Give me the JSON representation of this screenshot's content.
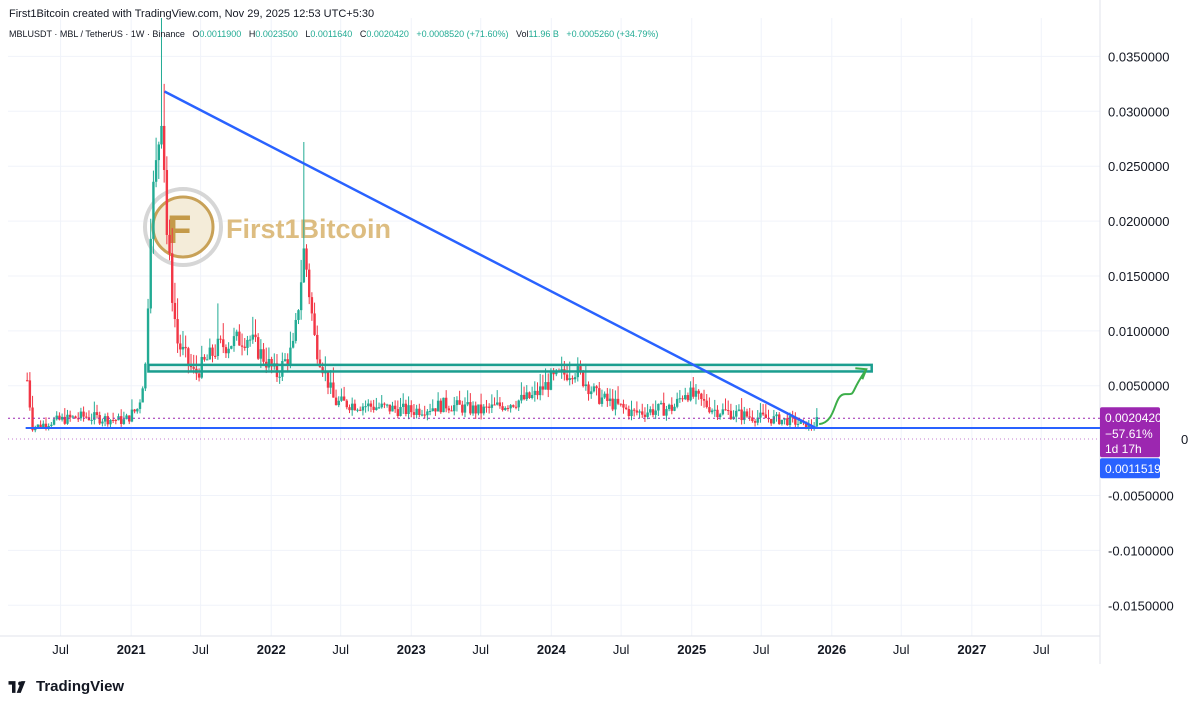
{
  "header": {
    "credit": "First1Bitcoin created with TradingView.com, Nov 29, 2025 12:53 UTC+5:30",
    "symbol": "MBLUSDT · MBL / TetherUS · 1W · Binance",
    "o_label": "O",
    "o_value": "0.0011900",
    "h_label": "H",
    "h_value": "0.0023500",
    "l_label": "L",
    "l_value": "0.0011640",
    "c_label": "C",
    "c_value": "0.0020420",
    "change": "+0.0008520 (+71.60%)",
    "vol_label": "Vol",
    "vol_value": "11.96 B",
    "vol_change": "+0.0005260 (+34.79%)"
  },
  "watermark": {
    "text": "First1Bitcoin"
  },
  "footer": {
    "brand": "TradingView"
  },
  "badges": {
    "price": "0.0020420",
    "pct": "−57.61%",
    "countdown": "1d 17h",
    "support": "0.0011519",
    "partial": "0"
  },
  "colors": {
    "up": "#22ab94",
    "down": "#f23645",
    "trendline": "#2962ff",
    "zone": "#1b9e8f",
    "arrow": "#3cae4a",
    "price_badge": "#9c27b0",
    "support_badge": "#2962ff",
    "grid": "#f0f3fa"
  },
  "chart_data": {
    "type": "candlestick",
    "y_axis": {
      "position": "right",
      "ticks": [
        "0.0350000",
        "0.0300000",
        "0.0250000",
        "0.0200000",
        "0.0150000",
        "0.0100000",
        "0.0050000",
        "-0.0050000",
        "-0.0100000",
        "-0.0150000"
      ],
      "tick_values": [
        0.035,
        0.03,
        0.025,
        0.02,
        0.015,
        0.01,
        0.005,
        -0.005,
        -0.01,
        -0.015
      ],
      "range": [
        -0.0178,
        0.0385
      ]
    },
    "x_axis": {
      "range": [
        "2020-02-15",
        "2027-12-01"
      ],
      "ticks": [
        {
          "label": "Jul",
          "date": "2020-07-01"
        },
        {
          "label": "2021",
          "date": "2021-01-01",
          "bold": true
        },
        {
          "label": "Jul",
          "date": "2021-07-01"
        },
        {
          "label": "2022",
          "date": "2022-01-01",
          "bold": true
        },
        {
          "label": "Jul",
          "date": "2022-07-01"
        },
        {
          "label": "2023",
          "date": "2023-01-01",
          "bold": true
        },
        {
          "label": "Jul",
          "date": "2023-07-01"
        },
        {
          "label": "2024",
          "date": "2024-01-01",
          "bold": true
        },
        {
          "label": "Jul",
          "date": "2024-07-01"
        },
        {
          "label": "2025",
          "date": "2025-01-01",
          "bold": true
        },
        {
          "label": "Jul",
          "date": "2025-07-01"
        },
        {
          "label": "2026",
          "date": "2026-01-01",
          "bold": true
        },
        {
          "label": "Jul",
          "date": "2026-07-01"
        },
        {
          "label": "2027",
          "date": "2027-01-01",
          "bold": true
        },
        {
          "label": "Jul",
          "date": "2027-07-01"
        }
      ]
    },
    "series_anchors": [
      {
        "date": "2020-04-05",
        "close": 0.0055
      },
      {
        "date": "2020-04-19",
        "close": 0.0012
      },
      {
        "date": "2020-06-15",
        "close": 0.0018
      },
      {
        "date": "2020-09-01",
        "close": 0.0022
      },
      {
        "date": "2020-12-15",
        "close": 0.0018
      },
      {
        "date": "2021-01-20",
        "close": 0.003
      },
      {
        "date": "2021-02-08",
        "close": 0.007
      },
      {
        "date": "2021-02-22",
        "close": 0.021
      },
      {
        "date": "2021-03-08",
        "close": 0.025
      },
      {
        "date": "2021-03-22",
        "close": 0.031
      },
      {
        "date": "2021-04-05",
        "close": 0.018
      },
      {
        "date": "2021-05-01",
        "close": 0.009
      },
      {
        "date": "2021-06-15",
        "close": 0.006
      },
      {
        "date": "2021-08-15",
        "close": 0.0085
      },
      {
        "date": "2021-11-01",
        "close": 0.0095
      },
      {
        "date": "2022-01-15",
        "close": 0.006
      },
      {
        "date": "2022-03-01",
        "close": 0.0085
      },
      {
        "date": "2022-03-28",
        "close": 0.0175
      },
      {
        "date": "2022-04-25",
        "close": 0.009
      },
      {
        "date": "2022-06-15",
        "close": 0.0035
      },
      {
        "date": "2022-09-01",
        "close": 0.0032
      },
      {
        "date": "2023-01-01",
        "close": 0.0027
      },
      {
        "date": "2023-04-01",
        "close": 0.0033
      },
      {
        "date": "2023-07-01",
        "close": 0.0027
      },
      {
        "date": "2023-11-15",
        "close": 0.004
      },
      {
        "date": "2024-01-01",
        "close": 0.0055
      },
      {
        "date": "2024-03-01",
        "close": 0.0065
      },
      {
        "date": "2024-05-01",
        "close": 0.004
      },
      {
        "date": "2024-08-01",
        "close": 0.0025
      },
      {
        "date": "2024-11-15",
        "close": 0.003
      },
      {
        "date": "2024-12-15",
        "close": 0.0045
      },
      {
        "date": "2025-03-01",
        "close": 0.0028
      },
      {
        "date": "2025-06-01",
        "close": 0.0022
      },
      {
        "date": "2025-09-15",
        "close": 0.0018
      },
      {
        "date": "2025-11-10",
        "close": 0.00118
      },
      {
        "date": "2025-11-29",
        "close": 0.002042
      }
    ],
    "spikes": [
      {
        "date": "2020-04-05",
        "high": 0.006
      },
      {
        "date": "2021-03-22",
        "high": 0.0385
      },
      {
        "date": "2021-03-29",
        "high": 0.0325
      },
      {
        "date": "2022-03-28",
        "high": 0.0272
      },
      {
        "date": "2021-08-15",
        "high": 0.0125
      },
      {
        "date": "2024-02-20",
        "high": 0.0072
      },
      {
        "date": "2024-04-01",
        "high": 0.007
      }
    ],
    "annotations": {
      "trendline": {
        "from": {
          "date": "2021-03-29",
          "price": 0.0318
        },
        "to": {
          "date": "2025-11-20",
          "price": 0.00115
        }
      },
      "support_line": {
        "price": 0.0011519,
        "from_date": "2020-04-01"
      },
      "resistance_zone": {
        "from_date": "2021-02-15",
        "to_date": "2026-04-15",
        "low": 0.0063,
        "high": 0.0069
      },
      "projection_arrow": {
        "from": {
          "date": "2025-11-29",
          "price": 0.0015
        },
        "to": {
          "date": "2026-04-01",
          "price": 0.0065
        }
      },
      "price_line": {
        "price": 0.002042
      },
      "lower_dotted": {
        "price": 0.00015
      }
    }
  }
}
